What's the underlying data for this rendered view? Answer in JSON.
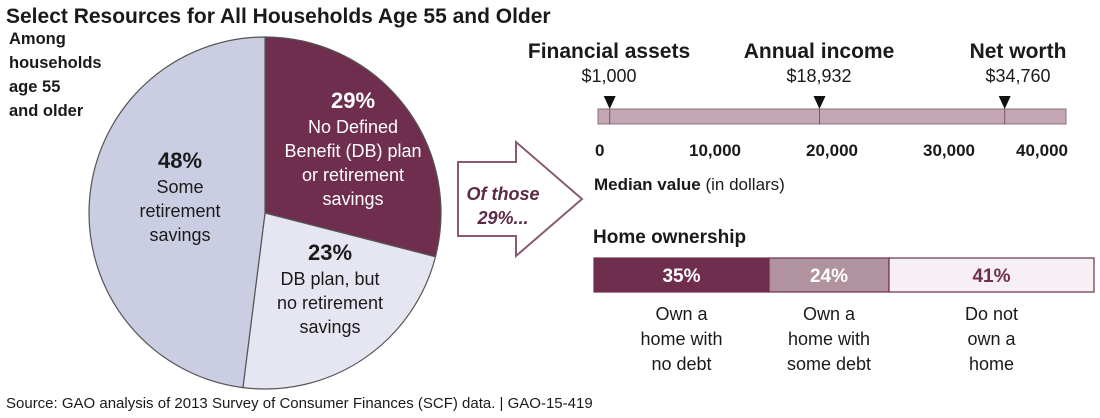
{
  "title": "Select Resources for All Households Age 55 and Older",
  "colors": {
    "dark_plum": "#6f2e4e",
    "mauve": "#b1939f",
    "lavender": "#cbcde3",
    "pale_lavender": "#e6e6f2",
    "pale_pink": "#f6eff3",
    "bar_track": "#c4a6b4",
    "arrow_text": "#5b2a46",
    "text": "#1a1a1a"
  },
  "chart_data": [
    {
      "type": "pie",
      "annotation": [
        "Among",
        "households",
        "age 55",
        "and older"
      ],
      "slices": [
        {
          "value": 29,
          "pct_label": "29%",
          "lines": [
            "No Defined",
            "Benefit (DB) plan",
            "or retirement",
            "savings"
          ],
          "color": "#6f2e4e",
          "text_color": "#ffffff"
        },
        {
          "value": 23,
          "pct_label": "23%",
          "lines": [
            "DB plan, but",
            "no retirement",
            "savings"
          ],
          "color": "#e6e6f2",
          "text_color": "#1a1a1a"
        },
        {
          "value": 48,
          "pct_label": "48%",
          "lines": [
            "Some",
            "retirement",
            "savings"
          ],
          "color": "#cbcde3",
          "text_color": "#1a1a1a"
        }
      ],
      "start_angle_deg": 0,
      "direction": "clockwise"
    },
    {
      "type": "scatter",
      "title": "",
      "xlabel_bold": "Median value",
      "xlabel_rest": " (in dollars)",
      "xlim": [
        0,
        40000
      ],
      "xticks": [
        0,
        10000,
        20000,
        30000,
        40000
      ],
      "xtick_labels": [
        "0",
        "10,000",
        "20,000",
        "30,000",
        "40,000"
      ],
      "markers": [
        {
          "name": "Financial assets",
          "value": 1000,
          "value_label": "$1,000"
        },
        {
          "name": "Annual income",
          "value": 18932,
          "value_label": "$18,932"
        },
        {
          "name": "Net worth",
          "value": 34760,
          "value_label": "$34,760"
        }
      ]
    },
    {
      "type": "bar",
      "title": "Home ownership",
      "orientation": "horizontal-stacked",
      "segments": [
        {
          "value": 35,
          "pct_label": "35%",
          "lines": [
            "Own a",
            "home with",
            "no debt"
          ],
          "color": "#6f2e4e",
          "text_color": "#ffffff"
        },
        {
          "value": 24,
          "pct_label": "24%",
          "lines": [
            "Own a",
            "home with",
            "some debt"
          ],
          "color": "#b1939f",
          "text_color": "#ffffff"
        },
        {
          "value": 41,
          "pct_label": "41%",
          "lines": [
            "Do not",
            "own a",
            "home"
          ],
          "color": "#f6eff3",
          "text_color": "#6f2e4e"
        }
      ]
    }
  ],
  "arrow_lines": [
    "Of those",
    "29%..."
  ],
  "source": "Source: GAO analysis of 2013 Survey of Consumer Finances (SCF) data.  |  GAO-15-419"
}
